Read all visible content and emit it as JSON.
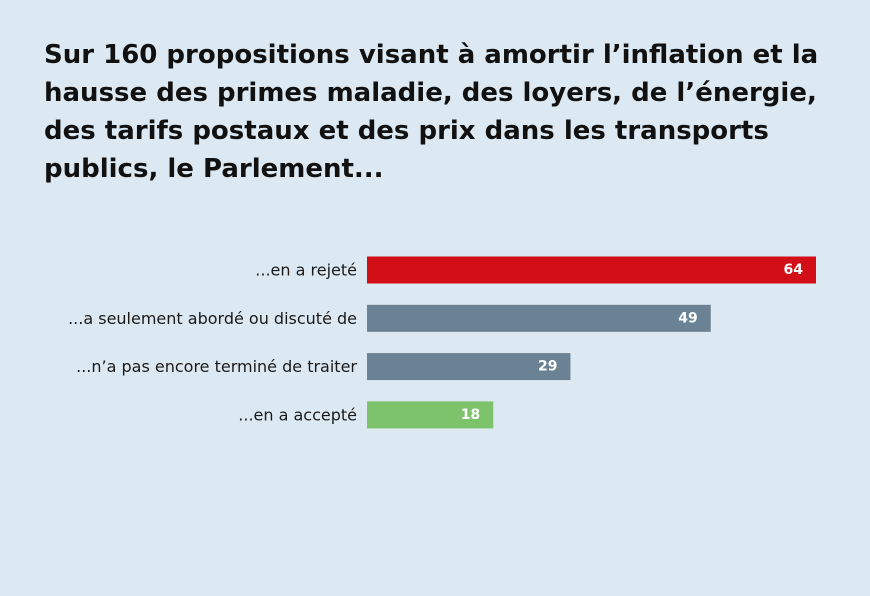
{
  "chart_data": {
    "type": "bar",
    "orientation": "horizontal",
    "title": "Sur 160 propositions visant à amortir l’inflation et la hausse des primes maladie, des loyers, de l’énergie, des tarifs postaux et des prix dans les transports publics, le Parlement...",
    "categories": [
      "...en a rejeté",
      "...a seulement abordé ou discuté de",
      "...n’a pas encore terminé de traiter",
      "...en a accepté"
    ],
    "values": [
      64,
      49,
      29,
      18
    ],
    "colors": [
      "#d20f16",
      "#6a8294",
      "#6a8294",
      "#7dc36c"
    ],
    "xlim": [
      0,
      64
    ],
    "grid": false,
    "legend": "none"
  },
  "colors": {
    "background": "#dce9f3",
    "title_text": "#111111",
    "label_text": "#1a1a1a",
    "value_text": "#ffffff"
  }
}
